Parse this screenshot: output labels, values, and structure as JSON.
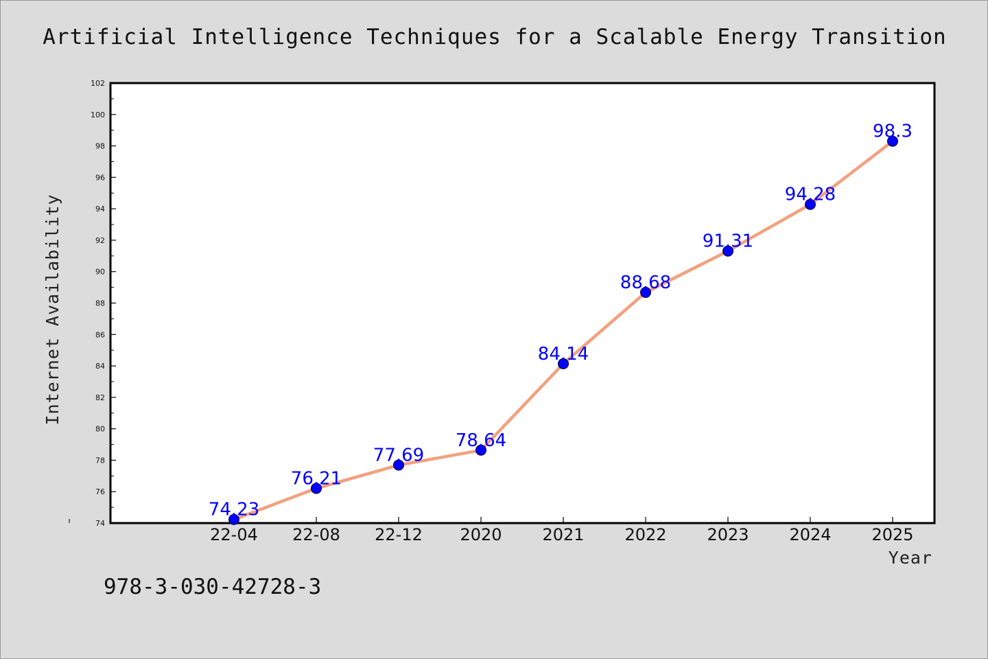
{
  "figure": {
    "title": "Artificial Intelligence Techniques for a Scalable Energy Transition",
    "footer_code": "978-3-030-42728-3"
  },
  "colors": {
    "background": "#dcdcdc",
    "plot_background": "#ffffff",
    "line": "#f4a07e",
    "marker": "#0000ff",
    "data_label": "#0000ff"
  },
  "chart_data": {
    "type": "line",
    "title": "Artificial Intelligence Techniques for a Scalable Energy Transition",
    "xlabel": "Year",
    "ylabel": "Internet Availability",
    "categories": [
      "22-04",
      "22-08",
      "22-12",
      "2020",
      "2021",
      "2022",
      "2023",
      "2024",
      "2025"
    ],
    "series": [
      {
        "values": [
          74.23,
          76.21,
          77.69,
          78.64,
          84.14,
          88.68,
          91.31,
          94.28,
          98.3
        ],
        "labels": [
          "74.23",
          "76.21",
          "77.69",
          "78.64",
          "84.14",
          "88.68",
          "91.31",
          "94.28",
          "98.3"
        ]
      }
    ],
    "ylim": [
      74,
      102
    ],
    "yticks": [
      "74",
      "76",
      "78",
      "80",
      "82",
      "84",
      "86",
      "88",
      "90",
      "92",
      "94",
      "96",
      "98",
      "100",
      "102"
    ],
    "grid": false,
    "legend": "none",
    "marker": "circle"
  }
}
